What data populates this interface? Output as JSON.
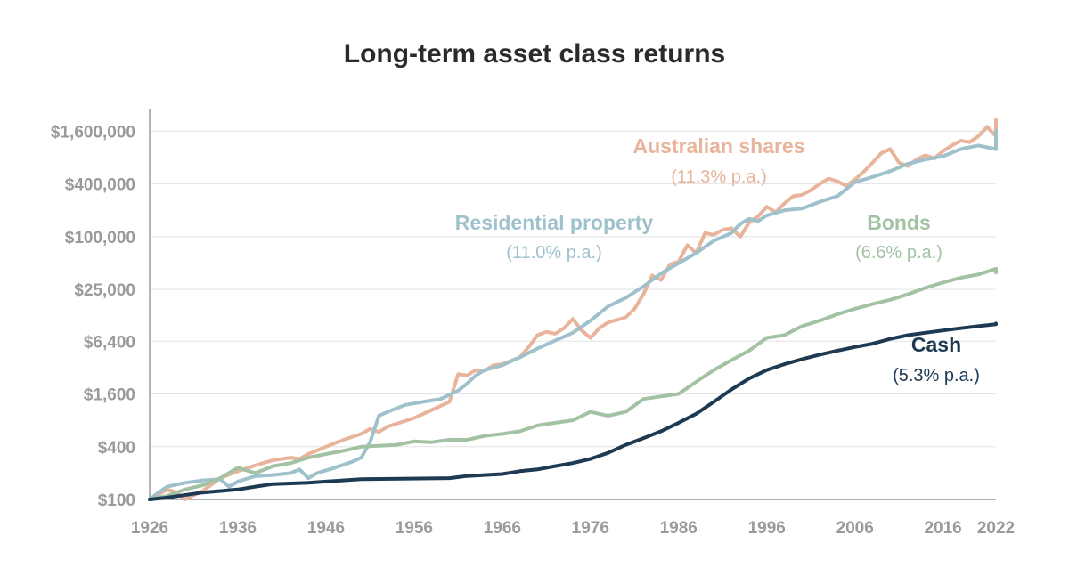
{
  "chart_data": {
    "type": "line",
    "title": "Long-term asset class returns",
    "xlabel": "",
    "ylabel": "",
    "xlim": [
      1926,
      2022
    ],
    "ylim": [
      100,
      2900000
    ],
    "yscale": "log",
    "grid": true,
    "x_ticks": [
      1926,
      1936,
      1946,
      1956,
      1966,
      1976,
      1986,
      1996,
      2006,
      2016,
      2022
    ],
    "x_tick_labels": [
      "1926",
      "1936",
      "1946",
      "1956",
      "1966",
      "1976",
      "1986",
      "1996",
      "2006",
      "2016",
      "2022"
    ],
    "y_ticks": [
      100,
      400,
      1600,
      6400,
      25000,
      100000,
      400000,
      1600000
    ],
    "y_tick_labels": [
      "$100",
      "$400",
      "$1,600",
      "$6,400",
      "$25,000",
      "$100,000",
      "$400,000",
      "$1,600,000"
    ],
    "series": [
      {
        "name": "Australian shares",
        "rate": "(11.3% p.a.)",
        "color": "#e8b49b",
        "points": [
          [
            1926,
            100
          ],
          [
            1928,
            130
          ],
          [
            1929,
            120
          ],
          [
            1930,
            100
          ],
          [
            1932,
            125
          ],
          [
            1934,
            175
          ],
          [
            1936,
            210
          ],
          [
            1938,
            245
          ],
          [
            1940,
            280
          ],
          [
            1942,
            300
          ],
          [
            1943,
            290
          ],
          [
            1944,
            330
          ],
          [
            1946,
            400
          ],
          [
            1948,
            480
          ],
          [
            1950,
            560
          ],
          [
            1951,
            640
          ],
          [
            1952,
            590
          ],
          [
            1953,
            680
          ],
          [
            1956,
            850
          ],
          [
            1958,
            1050
          ],
          [
            1960,
            1300
          ],
          [
            1961,
            2700
          ],
          [
            1962,
            2600
          ],
          [
            1963,
            3000
          ],
          [
            1964,
            2950
          ],
          [
            1965,
            3400
          ],
          [
            1966,
            3500
          ],
          [
            1968,
            4200
          ],
          [
            1969,
            5500
          ],
          [
            1970,
            7500
          ],
          [
            1971,
            8200
          ],
          [
            1972,
            7800
          ],
          [
            1973,
            9000
          ],
          [
            1974,
            11500
          ],
          [
            1975,
            8500
          ],
          [
            1976,
            7000
          ],
          [
            1977,
            9000
          ],
          [
            1978,
            10500
          ],
          [
            1980,
            12000
          ],
          [
            1981,
            15000
          ],
          [
            1982,
            22000
          ],
          [
            1983,
            36000
          ],
          [
            1984,
            32000
          ],
          [
            1985,
            48000
          ],
          [
            1986,
            52000
          ],
          [
            1987,
            80000
          ],
          [
            1988,
            65000
          ],
          [
            1989,
            110000
          ],
          [
            1990,
            105000
          ],
          [
            1991,
            120000
          ],
          [
            1992,
            125000
          ],
          [
            1993,
            100000
          ],
          [
            1994,
            145000
          ],
          [
            1995,
            170000
          ],
          [
            1996,
            220000
          ],
          [
            1997,
            190000
          ],
          [
            1998,
            240000
          ],
          [
            1999,
            290000
          ],
          [
            2000,
            300000
          ],
          [
            2001,
            340000
          ],
          [
            2002,
            400000
          ],
          [
            2003,
            460000
          ],
          [
            2004,
            430000
          ],
          [
            2005,
            380000
          ],
          [
            2006,
            450000
          ],
          [
            2007,
            550000
          ],
          [
            2008,
            700000
          ],
          [
            2009,
            900000
          ],
          [
            2010,
            1000000
          ],
          [
            2011,
            700000
          ],
          [
            2012,
            640000
          ],
          [
            2013,
            760000
          ],
          [
            2014,
            850000
          ],
          [
            2015,
            780000
          ],
          [
            2016,
            950000
          ],
          [
            2017,
            1100000
          ],
          [
            2018,
            1250000
          ],
          [
            2019,
            1200000
          ],
          [
            2020,
            1400000
          ],
          [
            2021,
            1800000
          ],
          [
            2022,
            1400000
          ],
          [
            2023,
            2000000
          ],
          [
            2024,
            2150000
          ]
        ]
      },
      {
        "name": "Residential property",
        "rate": "(11.0% p.a.)",
        "color": "#9fc1cc",
        "points": [
          [
            1926,
            100
          ],
          [
            1927,
            120
          ],
          [
            1928,
            140
          ],
          [
            1930,
            155
          ],
          [
            1932,
            165
          ],
          [
            1934,
            170
          ],
          [
            1935,
            140
          ],
          [
            1936,
            160
          ],
          [
            1938,
            185
          ],
          [
            1940,
            190
          ],
          [
            1942,
            200
          ],
          [
            1943,
            220
          ],
          [
            1944,
            175
          ],
          [
            1945,
            200
          ],
          [
            1947,
            230
          ],
          [
            1949,
            270
          ],
          [
            1950,
            300
          ],
          [
            1951,
            450
          ],
          [
            1952,
            900
          ],
          [
            1953,
            1000
          ],
          [
            1955,
            1200
          ],
          [
            1957,
            1300
          ],
          [
            1959,
            1400
          ],
          [
            1961,
            1750
          ],
          [
            1962,
            2100
          ],
          [
            1963,
            2600
          ],
          [
            1964,
            3000
          ],
          [
            1966,
            3400
          ],
          [
            1968,
            4200
          ],
          [
            1970,
            5300
          ],
          [
            1972,
            6500
          ],
          [
            1974,
            8000
          ],
          [
            1976,
            11000
          ],
          [
            1978,
            16000
          ],
          [
            1980,
            20000
          ],
          [
            1982,
            27000
          ],
          [
            1984,
            38000
          ],
          [
            1986,
            50000
          ],
          [
            1988,
            65000
          ],
          [
            1990,
            90000
          ],
          [
            1992,
            110000
          ],
          [
            1993,
            140000
          ],
          [
            1994,
            160000
          ],
          [
            1995,
            150000
          ],
          [
            1996,
            175000
          ],
          [
            1998,
            200000
          ],
          [
            2000,
            210000
          ],
          [
            2002,
            250000
          ],
          [
            2004,
            290000
          ],
          [
            2006,
            420000
          ],
          [
            2008,
            480000
          ],
          [
            2010,
            560000
          ],
          [
            2012,
            680000
          ],
          [
            2014,
            760000
          ],
          [
            2016,
            830000
          ],
          [
            2018,
            1000000
          ],
          [
            2020,
            1100000
          ],
          [
            2022,
            1000000
          ],
          [
            2024,
            1600000
          ]
        ]
      },
      {
        "name": "Bonds",
        "rate": "(6.6% p.a.)",
        "color": "#a3c2a4",
        "points": [
          [
            1926,
            100
          ],
          [
            1928,
            110
          ],
          [
            1930,
            130
          ],
          [
            1932,
            145
          ],
          [
            1934,
            175
          ],
          [
            1936,
            230
          ],
          [
            1938,
            200
          ],
          [
            1940,
            240
          ],
          [
            1942,
            260
          ],
          [
            1944,
            300
          ],
          [
            1946,
            330
          ],
          [
            1948,
            360
          ],
          [
            1950,
            400
          ],
          [
            1954,
            420
          ],
          [
            1956,
            460
          ],
          [
            1958,
            450
          ],
          [
            1960,
            480
          ],
          [
            1962,
            480
          ],
          [
            1964,
            530
          ],
          [
            1966,
            560
          ],
          [
            1968,
            600
          ],
          [
            1970,
            700
          ],
          [
            1972,
            750
          ],
          [
            1974,
            800
          ],
          [
            1976,
            1000
          ],
          [
            1978,
            900
          ],
          [
            1980,
            1000
          ],
          [
            1982,
            1400
          ],
          [
            1984,
            1500
          ],
          [
            1986,
            1600
          ],
          [
            1988,
            2200
          ],
          [
            1990,
            3000
          ],
          [
            1992,
            3900
          ],
          [
            1994,
            5000
          ],
          [
            1996,
            7000
          ],
          [
            1998,
            7500
          ],
          [
            2000,
            9500
          ],
          [
            2002,
            11000
          ],
          [
            2004,
            13000
          ],
          [
            2006,
            15000
          ],
          [
            2008,
            17000
          ],
          [
            2010,
            19000
          ],
          [
            2012,
            22000
          ],
          [
            2014,
            26000
          ],
          [
            2016,
            30000
          ],
          [
            2018,
            34000
          ],
          [
            2020,
            37000
          ],
          [
            2022,
            43000
          ],
          [
            2024,
            39000
          ]
        ]
      },
      {
        "name": "Cash",
        "rate": "(5.3% p.a.)",
        "color": "#1e3a52",
        "points": [
          [
            1926,
            100
          ],
          [
            1928,
            105
          ],
          [
            1932,
            120
          ],
          [
            1936,
            130
          ],
          [
            1938,
            140
          ],
          [
            1940,
            150
          ],
          [
            1944,
            155
          ],
          [
            1946,
            160
          ],
          [
            1950,
            170
          ],
          [
            1960,
            175
          ],
          [
            1962,
            185
          ],
          [
            1964,
            190
          ],
          [
            1966,
            195
          ],
          [
            1968,
            210
          ],
          [
            1970,
            220
          ],
          [
            1972,
            240
          ],
          [
            1974,
            260
          ],
          [
            1976,
            290
          ],
          [
            1978,
            340
          ],
          [
            1980,
            420
          ],
          [
            1982,
            500
          ],
          [
            1984,
            600
          ],
          [
            1986,
            750
          ],
          [
            1988,
            950
          ],
          [
            1990,
            1300
          ],
          [
            1992,
            1800
          ],
          [
            1994,
            2400
          ],
          [
            1996,
            3000
          ],
          [
            1998,
            3500
          ],
          [
            2000,
            4000
          ],
          [
            2002,
            4500
          ],
          [
            2004,
            5000
          ],
          [
            2006,
            5500
          ],
          [
            2008,
            6000
          ],
          [
            2010,
            6800
          ],
          [
            2012,
            7500
          ],
          [
            2014,
            8000
          ],
          [
            2016,
            8500
          ],
          [
            2018,
            9000
          ],
          [
            2020,
            9500
          ],
          [
            2022,
            10000
          ],
          [
            2024,
            10200
          ]
        ]
      }
    ]
  }
}
